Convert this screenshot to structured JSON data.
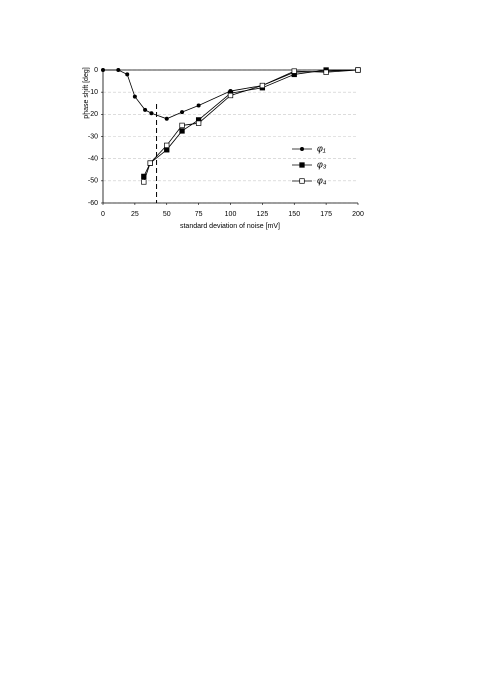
{
  "chart_data": {
    "type": "line",
    "x_label": "standard deviation of noise [mV]",
    "y_label": "phase shift [deg]",
    "xlim": [
      0,
      200
    ],
    "xticks": [
      0,
      25,
      50,
      75,
      100,
      125,
      150,
      175,
      200
    ],
    "ylim": [
      -60,
      0
    ],
    "yticks": [
      -60,
      -50,
      -40,
      -30,
      -20,
      -10,
      0
    ],
    "grid": true,
    "legend": "right",
    "vline": 42,
    "series": [
      {
        "name": "φ₁",
        "color": "#000000",
        "marker": "circle",
        "x": [
          0,
          12,
          19,
          25,
          33,
          38,
          50,
          62,
          75,
          100,
          125,
          150,
          175,
          200
        ],
        "values": [
          0,
          0,
          -2,
          -12,
          -18,
          -19.5,
          -22,
          -19,
          -16,
          -9.5,
          -7,
          -1,
          -0.5,
          0
        ]
      },
      {
        "name": "φ₃",
        "color": "#000000",
        "marker": "square-filled",
        "x": [
          32,
          37,
          50,
          62,
          75,
          100,
          125,
          150,
          175,
          200
        ],
        "values": [
          -48,
          -42,
          -36,
          -27.5,
          -22.5,
          -10.5,
          -8,
          -2,
          0,
          0
        ]
      },
      {
        "name": "φ₄",
        "color": "#000000",
        "marker": "square-open",
        "x": [
          32,
          37,
          50,
          62,
          75,
          100,
          125,
          150,
          175,
          200
        ],
        "values": [
          -50.5,
          -42,
          -34,
          -25,
          -24,
          -11.5,
          -7,
          -0.5,
          -1,
          0
        ]
      }
    ]
  }
}
